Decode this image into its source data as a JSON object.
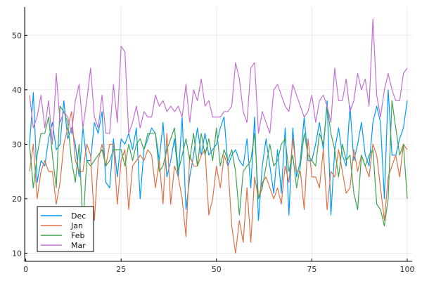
{
  "chart_data": {
    "type": "line",
    "title": "",
    "xlabel": "",
    "ylabel": "",
    "xlim": [
      1,
      100
    ],
    "ylim": [
      8.5,
      55.2
    ],
    "xticks": [
      0,
      25,
      50,
      75,
      100
    ],
    "yticks": [
      10,
      20,
      30,
      40,
      50
    ],
    "grid": true,
    "legend_position": "bottom-left",
    "x": [
      1,
      2,
      3,
      4,
      5,
      6,
      7,
      8,
      9,
      10,
      11,
      12,
      13,
      14,
      15,
      16,
      17,
      18,
      19,
      20,
      21,
      22,
      23,
      24,
      25,
      26,
      27,
      28,
      29,
      30,
      31,
      32,
      33,
      34,
      35,
      36,
      37,
      38,
      39,
      40,
      41,
      42,
      43,
      44,
      45,
      46,
      47,
      48,
      49,
      50,
      51,
      52,
      53,
      54,
      55,
      56,
      57,
      58,
      59,
      60,
      61,
      62,
      63,
      64,
      65,
      66,
      67,
      68,
      69,
      70,
      71,
      72,
      73,
      74,
      75,
      76,
      77,
      78,
      79,
      80,
      81,
      82,
      83,
      84,
      85,
      86,
      87,
      88,
      89,
      90,
      91,
      92,
      93,
      94,
      95,
      96,
      97,
      98,
      99,
      100
    ],
    "series": [
      {
        "name": "Dec",
        "color": "#009AFA",
        "values": [
          30,
          39.5,
          23,
          27,
          26,
          31,
          34,
          29,
          30,
          38,
          31,
          33,
          30,
          24,
          33,
          27,
          27,
          34,
          32,
          36,
          23,
          22,
          31,
          24,
          31,
          30,
          32,
          29,
          33,
          20,
          29,
          31,
          33,
          32,
          27,
          34,
          24,
          27,
          31,
          24,
          35,
          18,
          24,
          28,
          33,
          28,
          32,
          28,
          29,
          30,
          33,
          35,
          26,
          28,
          29,
          27,
          26,
          31,
          22,
          35,
          16,
          26,
          31,
          26,
          21,
          29,
          21,
          33,
          17,
          33,
          24,
          27,
          35,
          27,
          27,
          30,
          34,
          29,
          38,
          17,
          29,
          33,
          28,
          26,
          37,
          27,
          30,
          34,
          28,
          26,
          34,
          37,
          34,
          20,
          40,
          28,
          28,
          31,
          33,
          38
        ]
      },
      {
        "name": "Jan",
        "color": "#E26F46",
        "values": [
          25,
          30,
          20,
          25,
          27,
          25,
          25,
          19,
          23,
          30,
          33,
          36,
          27,
          25,
          25,
          30,
          28,
          16,
          27,
          30,
          26,
          30,
          30,
          19,
          27,
          29,
          18,
          26,
          27,
          28,
          27,
          29,
          28,
          22,
          27,
          19,
          32,
          19,
          26,
          24,
          20,
          13,
          28,
          26,
          26,
          28,
          29,
          17,
          20,
          26,
          22,
          28,
          26,
          15,
          10,
          16,
          12,
          22,
          12,
          24,
          20,
          23,
          24,
          22,
          20,
          22,
          19,
          26,
          23,
          31,
          25,
          25,
          18,
          31,
          24,
          24,
          22,
          29,
          18,
          25,
          24,
          29,
          25,
          21,
          22,
          29,
          25,
          28,
          26,
          24,
          30,
          28,
          22,
          16,
          24,
          26,
          28,
          24,
          30,
          29
        ]
      },
      {
        "name": "Feb",
        "color": "#3EA44E",
        "values": [
          30,
          22,
          28,
          32,
          32,
          35,
          28,
          22,
          37,
          36,
          34,
          27,
          23,
          30,
          15,
          27,
          26,
          27,
          28,
          29,
          26,
          27,
          29,
          29,
          29,
          26,
          30,
          27,
          30,
          31,
          29,
          32,
          32,
          32,
          25,
          26,
          29,
          31,
          33,
          25,
          28,
          31,
          27,
          32,
          26,
          32,
          28,
          31,
          27,
          33,
          26,
          29,
          27,
          29,
          25,
          17,
          25,
          26,
          27,
          32,
          20,
          22,
          26,
          30,
          26,
          27,
          30,
          31,
          25,
          28,
          22,
          26,
          32,
          28,
          27,
          26,
          32,
          30,
          37,
          32,
          29,
          24,
          30,
          27,
          28,
          21,
          18,
          28,
          26,
          28,
          29,
          19,
          18,
          15,
          20,
          38,
          33,
          28,
          30,
          20
        ]
      },
      {
        "name": "Mar",
        "color": "#C271D2",
        "values": [
          39,
          33,
          35,
          39,
          33,
          38,
          30,
          43,
          34,
          36,
          35,
          32,
          38,
          41,
          33,
          38,
          44,
          35,
          33,
          39,
          32,
          32,
          41,
          34,
          48,
          47,
          32,
          34,
          37,
          33,
          36,
          35,
          35,
          39,
          37,
          38,
          36,
          37,
          36,
          37,
          35,
          41,
          34,
          40,
          38,
          42,
          37,
          38,
          35,
          35,
          35,
          36,
          36,
          37,
          45,
          42,
          36,
          34,
          44,
          45,
          32,
          36,
          34,
          32,
          40,
          41,
          39,
          37,
          36,
          41,
          39,
          37,
          35,
          36,
          39,
          34,
          38,
          39,
          37,
          34,
          44,
          38,
          38,
          42,
          36,
          38,
          43,
          40,
          42,
          37,
          53,
          39,
          35,
          40,
          43,
          40,
          38,
          38,
          43,
          44
        ]
      }
    ]
  }
}
